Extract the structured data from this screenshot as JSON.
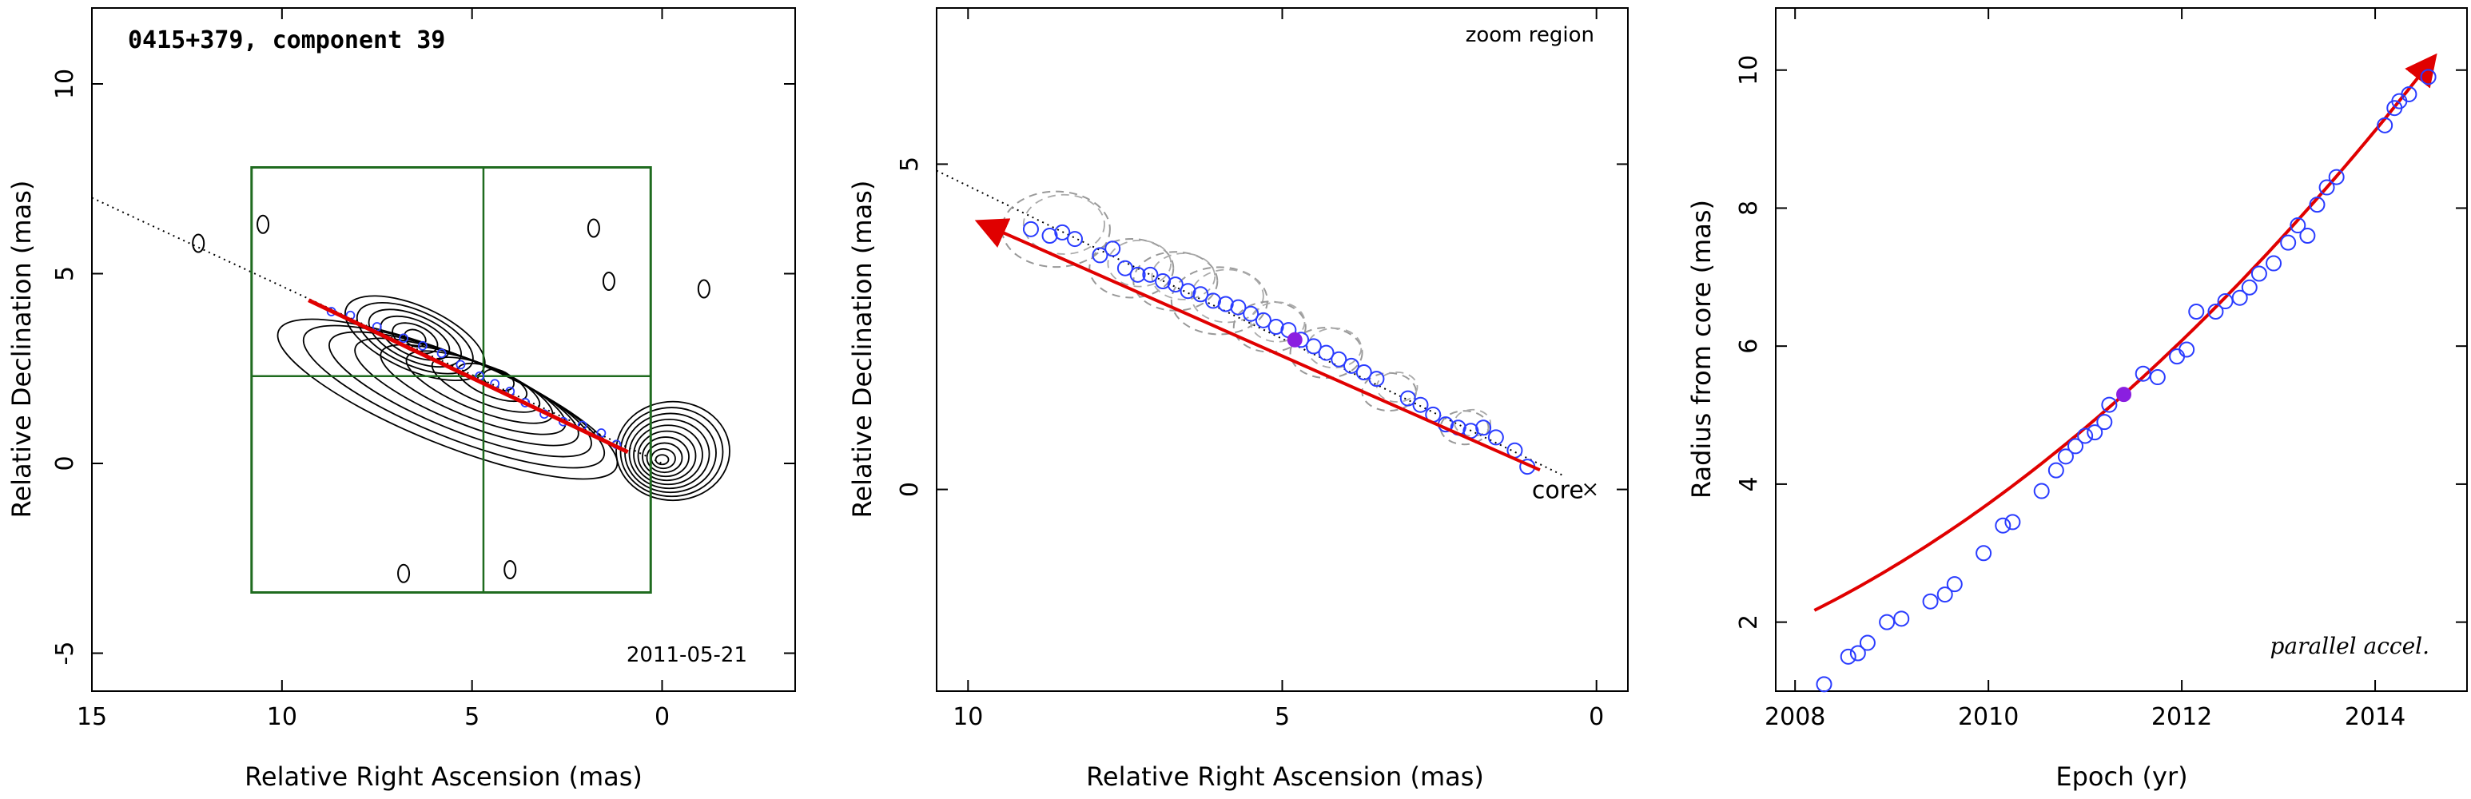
{
  "chart_data": [
    {
      "type": "contour",
      "title": "0415+379, component 39",
      "xlabel": "Relative Right Ascension (mas)",
      "ylabel": "Relative Declination (mas)",
      "xlim": [
        15,
        -3.5
      ],
      "ylim": [
        -6,
        12
      ],
      "xticks": [
        15,
        10,
        5,
        0
      ],
      "yticks": [
        -5,
        0,
        5,
        10
      ],
      "epoch_label": "2011-05-21",
      "box": {
        "x": [
          10.8,
          0.3
        ],
        "y": [
          -3.4,
          7.8
        ],
        "cross": {
          "x": 4.7,
          "y": 2.3
        },
        "color": "#1f6b1f"
      },
      "jet_axis": {
        "x": [
          15,
          0
        ],
        "y": [
          7.0,
          0
        ]
      },
      "arrow": {
        "from": {
          "x": 0.9,
          "y": 0.3
        },
        "to": {
          "x": 9.3,
          "y": 4.3
        },
        "color": "#e00000"
      },
      "components": [
        [
          8.7,
          4.0
        ],
        [
          8.2,
          3.9
        ],
        [
          7.5,
          3.6
        ],
        [
          6.8,
          3.3
        ],
        [
          6.3,
          3.1
        ],
        [
          5.8,
          2.9
        ],
        [
          5.3,
          2.6
        ],
        [
          4.8,
          2.3
        ],
        [
          4.4,
          2.1
        ],
        [
          4.0,
          1.9
        ],
        [
          3.6,
          1.6
        ],
        [
          3.1,
          1.3
        ],
        [
          2.6,
          1.1
        ],
        [
          2.1,
          1.0
        ],
        [
          1.6,
          0.8
        ],
        [
          1.2,
          0.5
        ]
      ],
      "component_color": "#2a3cff",
      "contour_centers": [
        {
          "x": 0.0,
          "y": 0.1
        },
        {
          "x": 4.3,
          "y": 2.2
        },
        {
          "x": 6.5,
          "y": 3.3
        }
      ],
      "islands": [
        {
          "x": 12.2,
          "y": 5.8
        },
        {
          "x": 10.5,
          "y": 6.3
        },
        {
          "x": 1.8,
          "y": 6.2
        },
        {
          "x": 1.4,
          "y": 4.8
        },
        {
          "x": -1.1,
          "y": 4.6
        },
        {
          "x": 6.8,
          "y": -2.9
        },
        {
          "x": 4.0,
          "y": -2.8
        }
      ]
    },
    {
      "type": "scatter",
      "xlabel": "Relative Right Ascension (mas)",
      "ylabel": "Relative Declination (mas)",
      "xlim": [
        10.5,
        -0.5
      ],
      "ylim": [
        -3.1,
        7.4
      ],
      "xticks": [
        10,
        5,
        0
      ],
      "yticks": [
        0,
        5
      ],
      "corner_note": "zoom region",
      "core_label": "core",
      "jet_axis": {
        "x": [
          10.5,
          0.5
        ],
        "y": [
          4.9,
          0.2
        ]
      },
      "arrow": {
        "from": {
          "x": 0.9,
          "y": 0.3
        },
        "to": {
          "x": 9.8,
          "y": 4.1
        },
        "color": "#e00000"
      },
      "points": [
        [
          9.0,
          4.0
        ],
        [
          8.7,
          3.9
        ],
        [
          8.5,
          3.95
        ],
        [
          8.3,
          3.85
        ],
        [
          7.9,
          3.6
        ],
        [
          7.7,
          3.7
        ],
        [
          7.5,
          3.4
        ],
        [
          7.3,
          3.3
        ],
        [
          7.1,
          3.3
        ],
        [
          6.9,
          3.2
        ],
        [
          6.7,
          3.15
        ],
        [
          6.5,
          3.05
        ],
        [
          6.3,
          3.0
        ],
        [
          6.1,
          2.9
        ],
        [
          5.9,
          2.85
        ],
        [
          5.7,
          2.8
        ],
        [
          5.5,
          2.7
        ],
        [
          5.3,
          2.6
        ],
        [
          5.1,
          2.5
        ],
        [
          4.9,
          2.45
        ],
        [
          4.7,
          2.3
        ],
        [
          4.5,
          2.2
        ],
        [
          4.3,
          2.1
        ],
        [
          4.1,
          2.0
        ],
        [
          3.9,
          1.9
        ],
        [
          3.7,
          1.8
        ],
        [
          3.5,
          1.7
        ],
        [
          3.0,
          1.4
        ],
        [
          2.8,
          1.3
        ],
        [
          2.6,
          1.15
        ],
        [
          2.4,
          1.0
        ],
        [
          2.2,
          0.95
        ],
        [
          2.0,
          0.9
        ],
        [
          1.8,
          0.95
        ],
        [
          1.6,
          0.8
        ],
        [
          1.3,
          0.6
        ],
        [
          1.1,
          0.35
        ]
      ],
      "highlight": [
        4.8,
        2.3
      ],
      "ellipses": [
        [
          8.6,
          4.0,
          0.9
        ],
        [
          7.4,
          3.4,
          0.7
        ],
        [
          6.7,
          3.2,
          0.7
        ],
        [
          6.0,
          2.9,
          0.8
        ],
        [
          5.2,
          2.5,
          0.6
        ],
        [
          4.3,
          2.1,
          0.6
        ],
        [
          3.3,
          1.5,
          0.45
        ],
        [
          2.1,
          0.95,
          0.4
        ]
      ],
      "point_color": "#2a3cff",
      "highlight_color": "#8a1fe0"
    },
    {
      "type": "scatter",
      "xlabel": "Epoch (yr)",
      "ylabel": "Radius from core (mas)",
      "xlim": [
        2007.8,
        2014.95
      ],
      "ylim": [
        1.0,
        10.9
      ],
      "xticks": [
        2008,
        2010,
        2012,
        2014
      ],
      "yticks": [
        2,
        4,
        6,
        8,
        10
      ],
      "corner_note": "parallel accel.",
      "fit": {
        "t0": 2011.4,
        "r0": 5.3,
        "v": 1.25,
        "a": 0.085,
        "color": "#e00000"
      },
      "points": [
        [
          2008.3,
          1.1
        ],
        [
          2008.55,
          1.5
        ],
        [
          2008.65,
          1.55
        ],
        [
          2008.75,
          1.7
        ],
        [
          2008.95,
          2.0
        ],
        [
          2009.1,
          2.05
        ],
        [
          2009.4,
          2.3
        ],
        [
          2009.55,
          2.4
        ],
        [
          2009.65,
          2.55
        ],
        [
          2009.95,
          3.0
        ],
        [
          2010.15,
          3.4
        ],
        [
          2010.25,
          3.45
        ],
        [
          2010.55,
          3.9
        ],
        [
          2010.7,
          4.2
        ],
        [
          2010.8,
          4.4
        ],
        [
          2010.9,
          4.55
        ],
        [
          2011.0,
          4.7
        ],
        [
          2011.1,
          4.75
        ],
        [
          2011.2,
          4.9
        ],
        [
          2011.25,
          5.15
        ],
        [
          2011.6,
          5.6
        ],
        [
          2011.75,
          5.55
        ],
        [
          2011.95,
          5.85
        ],
        [
          2012.05,
          5.95
        ],
        [
          2012.15,
          6.5
        ],
        [
          2012.35,
          6.5
        ],
        [
          2012.45,
          6.65
        ],
        [
          2012.6,
          6.7
        ],
        [
          2012.7,
          6.85
        ],
        [
          2012.8,
          7.05
        ],
        [
          2012.95,
          7.2
        ],
        [
          2013.1,
          7.5
        ],
        [
          2013.2,
          7.75
        ],
        [
          2013.3,
          7.6
        ],
        [
          2013.4,
          8.05
        ],
        [
          2013.5,
          8.3
        ],
        [
          2013.6,
          8.45
        ],
        [
          2014.1,
          9.2
        ],
        [
          2014.2,
          9.45
        ],
        [
          2014.25,
          9.55
        ],
        [
          2014.35,
          9.65
        ],
        [
          2014.55,
          9.9
        ]
      ],
      "highlight": [
        2011.4,
        5.3
      ],
      "point_color": "#2a3cff",
      "highlight_color": "#8a1fe0"
    }
  ]
}
